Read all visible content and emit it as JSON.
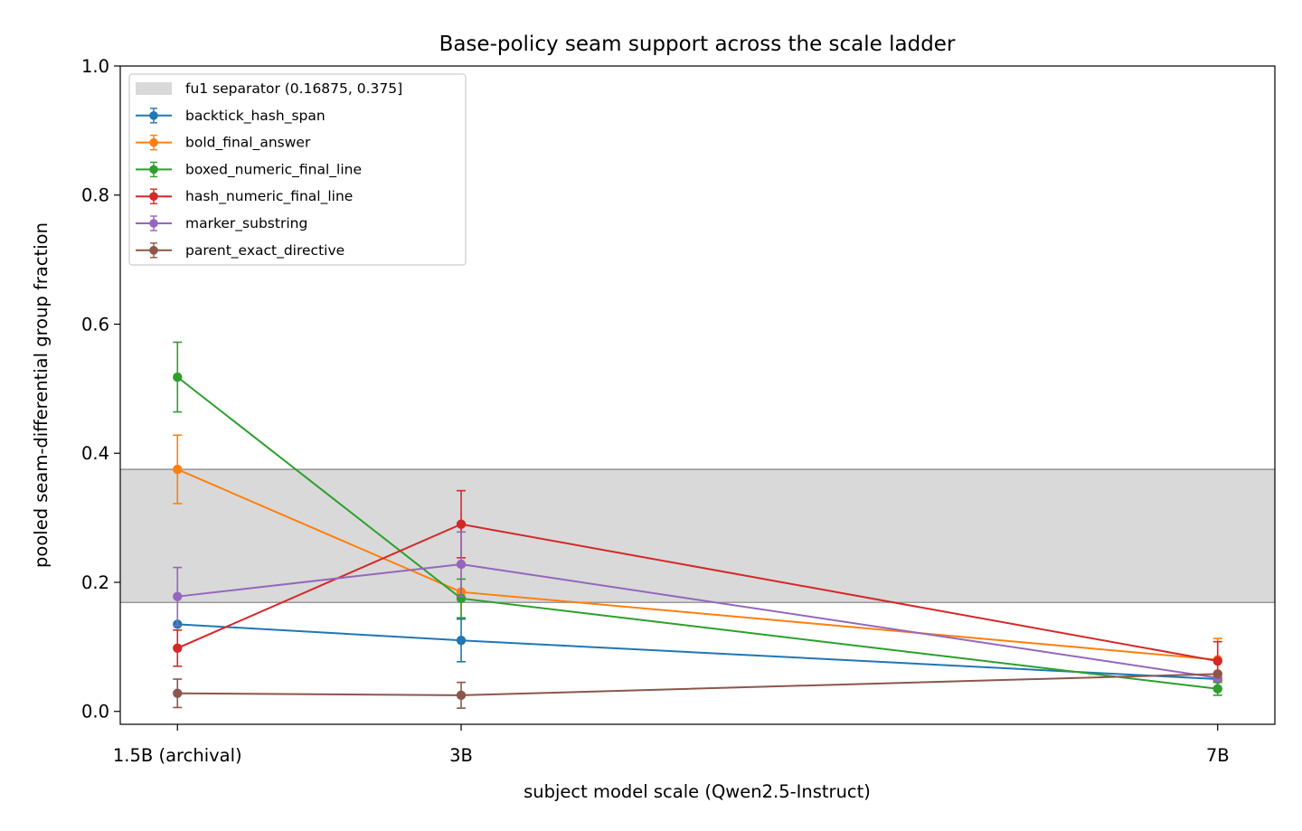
{
  "chart_data": {
    "type": "line",
    "title": "Base-policy seam support across the scale ladder",
    "xlabel": "subject model scale (Qwen2.5-Instruct)",
    "ylabel": "pooled seam-differential group fraction",
    "x_scale": "linear",
    "x_values_billion_params": [
      1.5,
      3,
      7
    ],
    "categories": [
      "1.5B (archival)",
      "3B",
      "7B"
    ],
    "ylim": [
      -0.02,
      1.0
    ],
    "yticks": [
      "0.0",
      "0.2",
      "0.4",
      "0.6",
      "0.8",
      "1.0"
    ],
    "ytick_values": [
      0.0,
      0.2,
      0.4,
      0.6,
      0.8,
      1.0
    ],
    "grid": false,
    "legend_position": "top-left",
    "band": {
      "label": "fu1 separator (0.16875, 0.375]",
      "low": 0.16875,
      "high": 0.375,
      "color": "#d9d9d9"
    },
    "series": [
      {
        "name": "backtick_hash_span",
        "color": "#1f77b4",
        "values": [
          0.135,
          0.11,
          0.05
        ],
        "errors": [
          0.0,
          0.033,
          0.0
        ]
      },
      {
        "name": "bold_final_answer",
        "color": "#ff7f0e",
        "values": [
          0.375,
          0.185,
          0.08
        ],
        "errors": [
          0.053,
          0.04,
          0.033
        ]
      },
      {
        "name": "boxed_numeric_final_line",
        "color": "#2ca02c",
        "values": [
          0.518,
          0.175,
          0.035
        ],
        "errors": [
          0.054,
          0.03,
          0.01
        ]
      },
      {
        "name": "hash_numeric_final_line",
        "color": "#d62728",
        "values": [
          0.098,
          0.29,
          0.078
        ],
        "errors": [
          0.028,
          0.052,
          0.03
        ]
      },
      {
        "name": "marker_substring",
        "color": "#9467bd",
        "values": [
          0.178,
          0.228,
          0.052
        ],
        "errors": [
          0.045,
          0.05,
          0.0
        ]
      },
      {
        "name": "parent_exact_directive",
        "color": "#8c564b",
        "values": [
          0.028,
          0.025,
          0.058
        ],
        "errors": [
          0.022,
          0.02,
          0.0
        ]
      }
    ]
  }
}
